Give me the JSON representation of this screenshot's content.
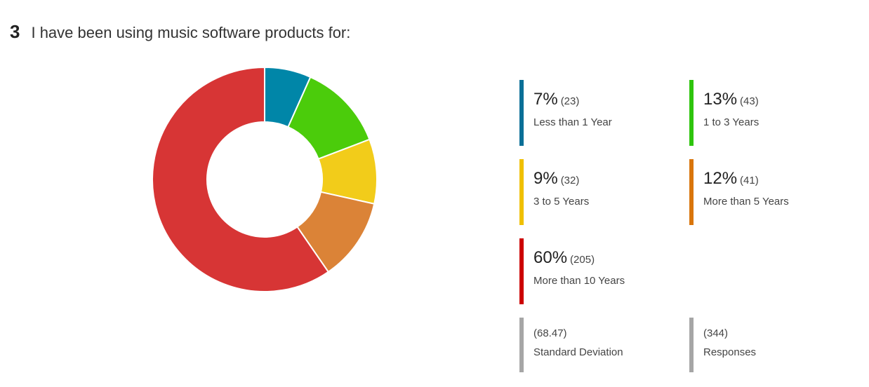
{
  "question": {
    "number": "3",
    "text": "I have been using music software products for:"
  },
  "chart_data": {
    "type": "pie",
    "categories": [
      "Less than 1 Year",
      "1 to 3 Years",
      "3 to 5 Years",
      "More than 5 Years",
      "More than 10 Years"
    ],
    "values": [
      23,
      43,
      32,
      41,
      205
    ],
    "percent_labels": [
      "7%",
      "13%",
      "9%",
      "12%",
      "60%"
    ],
    "count_labels": [
      "(23)",
      "(43)",
      "(32)",
      "(41)",
      "(205)"
    ],
    "colors": [
      "#0086a8",
      "#4bcc0b",
      "#f2cc1a",
      "#db8337",
      "#d73535"
    ],
    "legend_bar_colors": [
      "#0a6f97",
      "#2ec40d",
      "#f0c000",
      "#d9750c",
      "#cc0000"
    ],
    "donut": true
  },
  "stats": [
    {
      "value": "(68.47)",
      "label": "Standard Deviation"
    },
    {
      "value": "(344)",
      "label": "Responses"
    }
  ],
  "stat_bar_color": "#a6a6a6"
}
